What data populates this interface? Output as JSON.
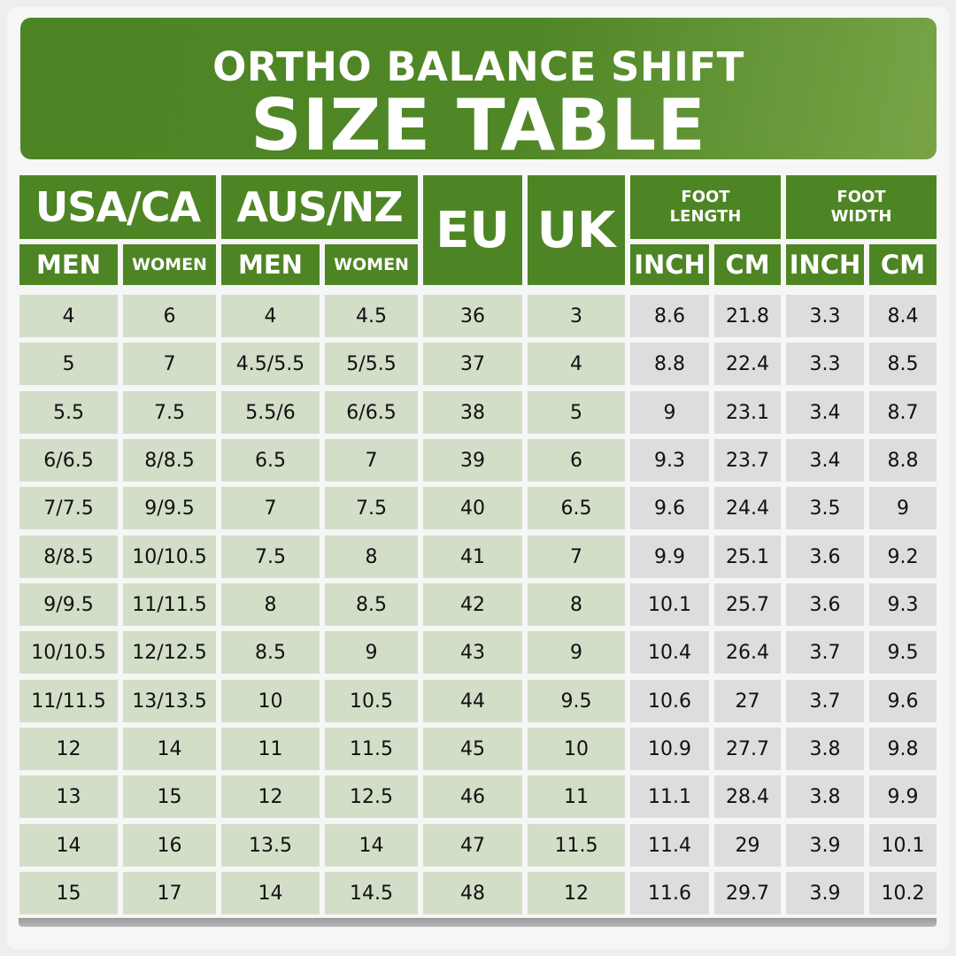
{
  "title": {
    "line1": "ORTHO BALANCE SHIFT",
    "line2": "SIZE TABLE"
  },
  "headers": {
    "usa_ca": "USA/CA",
    "aus_nz": "AUS/NZ",
    "eu": "EU",
    "uk": "UK",
    "foot_length_line1": "FOOT",
    "foot_length_line2": "LENGTH",
    "foot_width_line1": "FOOT",
    "foot_width_line2": "WIDTH",
    "men": "MEN",
    "women": "WOMEN",
    "inch": "INCH",
    "cm": "CM"
  },
  "columns": [
    "usa_men",
    "usa_women",
    "aus_men",
    "aus_women",
    "eu",
    "uk",
    "length_inch",
    "length_cm",
    "width_inch",
    "width_cm"
  ],
  "rows": [
    [
      "4",
      "6",
      "4",
      "4.5",
      "36",
      "3",
      "8.6",
      "21.8",
      "3.3",
      "8.4"
    ],
    [
      "5",
      "7",
      "4.5/5.5",
      "5/5.5",
      "37",
      "4",
      "8.8",
      "22.4",
      "3.3",
      "8.5"
    ],
    [
      "5.5",
      "7.5",
      "5.5/6",
      "6/6.5",
      "38",
      "5",
      "9",
      "23.1",
      "3.4",
      "8.7"
    ],
    [
      "6/6.5",
      "8/8.5",
      "6.5",
      "7",
      "39",
      "6",
      "9.3",
      "23.7",
      "3.4",
      "8.8"
    ],
    [
      "7/7.5",
      "9/9.5",
      "7",
      "7.5",
      "40",
      "6.5",
      "9.6",
      "24.4",
      "3.5",
      "9"
    ],
    [
      "8/8.5",
      "10/10.5",
      "7.5",
      "8",
      "41",
      "7",
      "9.9",
      "25.1",
      "3.6",
      "9.2"
    ],
    [
      "9/9.5",
      "11/11.5",
      "8",
      "8.5",
      "42",
      "8",
      "10.1",
      "25.7",
      "3.6",
      "9.3"
    ],
    [
      "10/10.5",
      "12/12.5",
      "8.5",
      "9",
      "43",
      "9",
      "10.4",
      "26.4",
      "3.7",
      "9.5"
    ],
    [
      "11/11.5",
      "13/13.5",
      "10",
      "10.5",
      "44",
      "9.5",
      "10.6",
      "27",
      "3.7",
      "9.6"
    ],
    [
      "12",
      "14",
      "11",
      "11.5",
      "45",
      "10",
      "10.9",
      "27.7",
      "3.8",
      "9.8"
    ],
    [
      "13",
      "15",
      "12",
      "12.5",
      "46",
      "11",
      "11.1",
      "28.4",
      "3.8",
      "9.9"
    ],
    [
      "14",
      "16",
      "13.5",
      "14",
      "47",
      "11.5",
      "11.4",
      "29",
      "3.9",
      "10.1"
    ],
    [
      "15",
      "17",
      "14",
      "14.5",
      "48",
      "12",
      "11.6",
      "29.7",
      "3.9",
      "10.2"
    ]
  ],
  "colors": {
    "header_green": "#4e8524",
    "cell_green": "#d3dec9",
    "cell_gray": "#dddddd",
    "text_white": "#ffffff"
  }
}
